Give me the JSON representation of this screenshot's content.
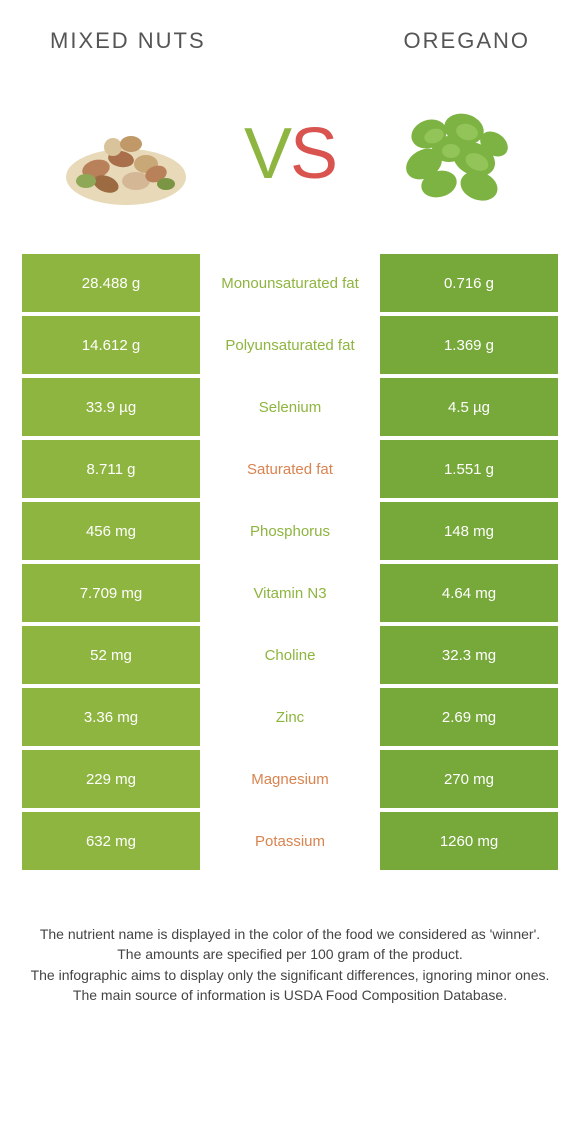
{
  "header": {
    "left_title": "Mixed nuts",
    "right_title": "Oregano"
  },
  "hero": {
    "vs_v": "V",
    "vs_s": "S"
  },
  "colors": {
    "left_food": "#8eb53f",
    "right_food": "#76a83a",
    "label_left_winner": "#8eb53f",
    "label_right_winner": "#d9834f"
  },
  "rows": [
    {
      "left": "28.488 g",
      "label": "Monounsaturated fat",
      "right": "0.716 g",
      "winner": "left"
    },
    {
      "left": "14.612 g",
      "label": "Polyunsaturated fat",
      "right": "1.369 g",
      "winner": "left"
    },
    {
      "left": "33.9 µg",
      "label": "Selenium",
      "right": "4.5 µg",
      "winner": "left"
    },
    {
      "left": "8.711 g",
      "label": "Saturated fat",
      "right": "1.551 g",
      "winner": "right"
    },
    {
      "left": "456 mg",
      "label": "Phosphorus",
      "right": "148 mg",
      "winner": "left"
    },
    {
      "left": "7.709 mg",
      "label": "Vitamin N3",
      "right": "4.64 mg",
      "winner": "left"
    },
    {
      "left": "52 mg",
      "label": "Choline",
      "right": "32.3 mg",
      "winner": "left"
    },
    {
      "left": "3.36 mg",
      "label": "Zinc",
      "right": "2.69 mg",
      "winner": "left"
    },
    {
      "left": "229 mg",
      "label": "Magnesium",
      "right": "270 mg",
      "winner": "right"
    },
    {
      "left": "632 mg",
      "label": "Potassium",
      "right": "1260 mg",
      "winner": "right"
    }
  ],
  "footer": {
    "line1": "The nutrient name is displayed in the color of the food we considered as 'winner'.",
    "line2": "The amounts are specified per 100 gram of the product.",
    "line3": "The infographic aims to display only the significant differences, ignoring minor ones.",
    "line4": "The main source of information is USDA Food Composition Database."
  }
}
